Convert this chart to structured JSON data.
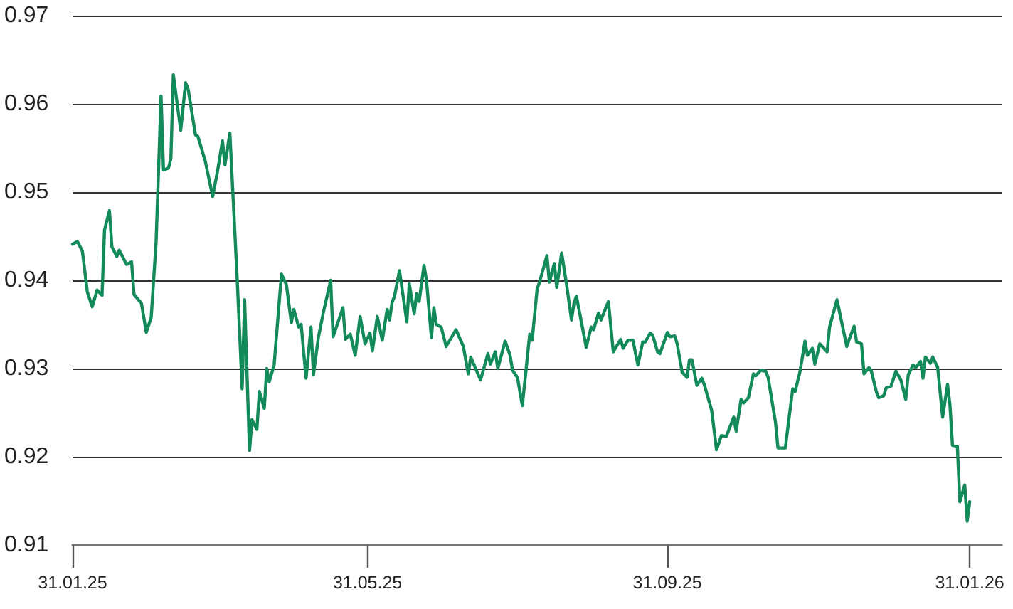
{
  "chart_data": {
    "type": "line",
    "xlim": [
      "2025-01-31",
      "2026-02-13"
    ],
    "xticks": [
      {
        "value": "2025-01-31",
        "label": "31.01.25"
      },
      {
        "value": "2025-05-31",
        "label": "31.05.25"
      },
      {
        "value": "2025-09-30",
        "label": "31.09.25"
      },
      {
        "value": "2026-01-31",
        "label": "31.01.26"
      }
    ],
    "ylim": [
      0.91,
      0.97
    ],
    "yticks": [
      0.91,
      0.92,
      0.93,
      0.94,
      0.95,
      0.96,
      0.97
    ],
    "grid": "y",
    "marker": "none",
    "line_style": "solid",
    "series": [
      {
        "color": "#138a5a",
        "x": [
          "2025-01-31",
          "2025-02-02",
          "2025-02-04",
          "2025-02-06",
          "2025-02-08",
          "2025-02-10",
          "2025-02-12",
          "2025-02-13",
          "2025-02-15",
          "2025-02-16",
          "2025-02-18",
          "2025-02-19",
          "2025-02-22",
          "2025-02-24",
          "2025-02-25",
          "2025-02-28",
          "2025-03-02",
          "2025-03-04",
          "2025-03-06",
          "2025-03-08",
          "2025-03-09",
          "2025-03-11",
          "2025-03-12",
          "2025-03-13",
          "2025-03-16",
          "2025-03-18",
          "2025-03-19",
          "2025-03-22",
          "2025-03-23",
          "2025-03-26",
          "2025-03-29",
          "2025-03-31",
          "2025-04-02",
          "2025-04-03",
          "2025-04-05",
          "2025-04-08",
          "2025-04-10",
          "2025-04-11",
          "2025-04-13",
          "2025-04-14",
          "2025-04-16",
          "2025-04-17",
          "2025-04-19",
          "2025-04-20",
          "2025-04-21",
          "2025-04-23",
          "2025-04-26",
          "2025-04-28",
          "2025-04-30",
          "2025-05-01",
          "2025-05-03",
          "2025-05-04",
          "2025-05-06",
          "2025-05-08",
          "2025-05-09",
          "2025-05-11",
          "2025-05-13",
          "2025-05-16",
          "2025-05-17",
          "2025-05-21",
          "2025-05-22",
          "2025-05-24",
          "2025-05-26",
          "2025-05-28",
          "2025-05-30",
          "2025-06-01",
          "2025-06-02",
          "2025-06-04",
          "2025-06-06",
          "2025-06-08",
          "2025-06-09",
          "2025-06-10",
          "2025-06-11",
          "2025-06-13",
          "2025-06-16",
          "2025-06-17",
          "2025-06-19",
          "2025-06-20",
          "2025-06-21",
          "2025-06-23",
          "2025-06-24",
          "2025-06-26",
          "2025-06-27",
          "2025-06-28",
          "2025-06-30",
          "2025-07-02",
          "2025-07-06",
          "2025-07-09",
          "2025-07-11",
          "2025-07-12",
          "2025-07-16",
          "2025-07-19",
          "2025-07-20",
          "2025-07-22",
          "2025-07-23",
          "2025-07-26",
          "2025-07-28",
          "2025-07-29",
          "2025-07-31",
          "2025-08-02",
          "2025-08-05",
          "2025-08-06",
          "2025-08-08",
          "2025-08-09",
          "2025-08-12",
          "2025-08-13",
          "2025-08-15",
          "2025-08-16",
          "2025-08-18",
          "2025-08-20",
          "2025-08-22",
          "2025-08-23",
          "2025-08-24",
          "2025-08-26",
          "2025-08-28",
          "2025-08-30",
          "2025-08-31",
          "2025-09-02",
          "2025-09-03",
          "2025-09-06",
          "2025-09-08",
          "2025-09-11",
          "2025-09-12",
          "2025-09-14",
          "2025-09-16",
          "2025-09-18",
          "2025-09-20",
          "2025-09-21",
          "2025-09-23",
          "2025-09-24",
          "2025-09-26",
          "2025-09-27",
          "2025-09-30",
          "2025-10-01",
          "2025-10-03",
          "2025-10-04",
          "2025-10-06",
          "2025-10-08",
          "2025-10-09",
          "2025-10-10",
          "2025-10-12",
          "2025-10-14",
          "2025-10-15",
          "2025-10-18",
          "2025-10-20",
          "2025-10-22",
          "2025-10-24",
          "2025-10-27",
          "2025-10-28",
          "2025-10-30",
          "2025-10-31",
          "2025-11-02",
          "2025-11-04",
          "2025-11-05",
          "2025-11-07",
          "2025-11-09",
          "2025-11-10",
          "2025-11-13",
          "2025-11-14",
          "2025-11-17",
          "2025-11-20",
          "2025-11-21",
          "2025-11-23",
          "2025-11-25",
          "2025-11-26",
          "2025-11-28",
          "2025-11-29",
          "2025-12-01",
          "2025-12-04",
          "2025-12-05",
          "2025-12-08",
          "2025-12-12",
          "2025-12-13",
          "2025-12-15",
          "2025-12-16",
          "2025-12-18",
          "2025-12-19",
          "2025-12-21",
          "2025-12-22",
          "2025-12-24",
          "2025-12-25",
          "2025-12-27",
          "2025-12-28",
          "2025-12-30",
          "2026-01-01",
          "2026-01-03",
          "2026-01-05",
          "2026-01-06",
          "2026-01-08",
          "2026-01-09",
          "2026-01-11",
          "2026-01-12",
          "2026-01-13",
          "2026-01-15",
          "2026-01-16",
          "2026-01-18",
          "2026-01-20",
          "2026-01-22",
          "2026-01-23",
          "2026-01-24",
          "2026-01-26",
          "2026-01-27",
          "2026-01-29",
          "2026-01-30",
          "2026-01-31"
        ],
        "values": [
          0.9441,
          0.9444,
          0.9433,
          0.9387,
          0.937,
          0.9389,
          0.9383,
          0.9457,
          0.9479,
          0.9438,
          0.9427,
          0.9434,
          0.9418,
          0.9421,
          0.9384,
          0.9374,
          0.9341,
          0.9358,
          0.9444,
          0.9609,
          0.9525,
          0.9527,
          0.9538,
          0.9633,
          0.957,
          0.9624,
          0.9617,
          0.9565,
          0.9563,
          0.9535,
          0.9495,
          0.9524,
          0.9558,
          0.9531,
          0.9567,
          0.94,
          0.9277,
          0.9378,
          0.9207,
          0.9242,
          0.9231,
          0.9274,
          0.9255,
          0.93,
          0.9285,
          0.9304,
          0.9407,
          0.9395,
          0.9352,
          0.9367,
          0.9347,
          0.935,
          0.9289,
          0.9347,
          0.9293,
          0.9335,
          0.9363,
          0.94,
          0.9336,
          0.9369,
          0.9333,
          0.9339,
          0.9315,
          0.9359,
          0.9328,
          0.934,
          0.932,
          0.9359,
          0.9332,
          0.9367,
          0.9355,
          0.9375,
          0.9382,
          0.9411,
          0.9353,
          0.9396,
          0.9362,
          0.9385,
          0.9376,
          0.9417,
          0.94,
          0.9335,
          0.9369,
          0.935,
          0.9347,
          0.9325,
          0.9344,
          0.9325,
          0.9294,
          0.9313,
          0.9287,
          0.9317,
          0.9305,
          0.9319,
          0.93,
          0.9331,
          0.9315,
          0.9298,
          0.929,
          0.9258,
          0.9339,
          0.9332,
          0.939,
          0.9398,
          0.9428,
          0.9398,
          0.9419,
          0.9392,
          0.9431,
          0.9395,
          0.9355,
          0.9374,
          0.9382,
          0.9353,
          0.9324,
          0.9347,
          0.9344,
          0.9363,
          0.9355,
          0.9376,
          0.9319,
          0.9333,
          0.9323,
          0.9332,
          0.9332,
          0.9304,
          0.933,
          0.933,
          0.934,
          0.9338,
          0.9319,
          0.9317,
          0.9341,
          0.9336,
          0.9337,
          0.9328,
          0.9296,
          0.929,
          0.931,
          0.931,
          0.9281,
          0.9289,
          0.9282,
          0.9253,
          0.9208,
          0.9224,
          0.9223,
          0.9245,
          0.9229,
          0.9265,
          0.9261,
          0.9267,
          0.9294,
          0.9292,
          0.9298,
          0.9297,
          0.929,
          0.9239,
          0.921,
          0.921,
          0.9277,
          0.9274,
          0.9297,
          0.9331,
          0.9315,
          0.9323,
          0.9305,
          0.9328,
          0.9319,
          0.9347,
          0.9378,
          0.9325,
          0.9333,
          0.9348,
          0.933,
          0.9328,
          0.9294,
          0.9301,
          0.9297,
          0.9274,
          0.9267,
          0.9269,
          0.9278,
          0.928,
          0.9297,
          0.9287,
          0.9265,
          0.9293,
          0.9304,
          0.9301,
          0.9308,
          0.9289,
          0.9313,
          0.9306,
          0.9313,
          0.9301,
          0.9245,
          0.9282,
          0.9258,
          0.9213,
          0.9212,
          0.9149,
          0.9168,
          0.9127,
          0.9149
        ]
      }
    ]
  }
}
